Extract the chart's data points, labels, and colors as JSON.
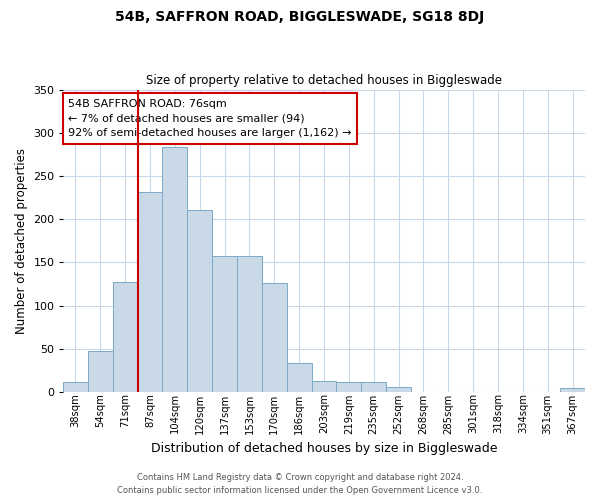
{
  "title": "54B, SAFFRON ROAD, BIGGLESWADE, SG18 8DJ",
  "subtitle": "Size of property relative to detached houses in Biggleswade",
  "xlabel": "Distribution of detached houses by size in Biggleswade",
  "ylabel": "Number of detached properties",
  "bin_labels": [
    "38sqm",
    "54sqm",
    "71sqm",
    "87sqm",
    "104sqm",
    "120sqm",
    "137sqm",
    "153sqm",
    "170sqm",
    "186sqm",
    "203sqm",
    "219sqm",
    "235sqm",
    "252sqm",
    "268sqm",
    "285sqm",
    "301sqm",
    "318sqm",
    "334sqm",
    "351sqm",
    "367sqm"
  ],
  "bar_heights": [
    12,
    47,
    127,
    231,
    284,
    210,
    157,
    157,
    126,
    34,
    13,
    12,
    11,
    6,
    0,
    0,
    0,
    0,
    0,
    0,
    5
  ],
  "bar_color": "#c9d9e8",
  "bar_edge_color": "#7aaac8",
  "red_line_index": 2,
  "ylim": [
    0,
    350
  ],
  "yticks": [
    0,
    50,
    100,
    150,
    200,
    250,
    300,
    350
  ],
  "annotation_title": "54B SAFFRON ROAD: 76sqm",
  "annotation_line1": "← 7% of detached houses are smaller (94)",
  "annotation_line2": "92% of semi-detached houses are larger (1,162) →",
  "annotation_box_color": "#ffffff",
  "annotation_box_edge": "#cc0000",
  "footer_line1": "Contains HM Land Registry data © Crown copyright and database right 2024.",
  "footer_line2": "Contains public sector information licensed under the Open Government Licence v3.0.",
  "background_color": "#ffffff",
  "grid_color": "#c8d8e8"
}
